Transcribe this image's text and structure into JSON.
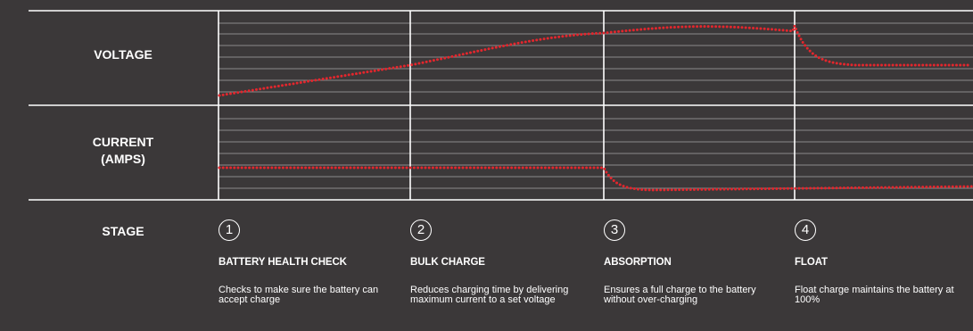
{
  "rows": {
    "voltage": "VOLTAGE",
    "current_line1": "CURRENT",
    "current_line2": "(AMPS)",
    "stage": "STAGE"
  },
  "stages": [
    {
      "number": "1",
      "title": "BATTERY HEALTH CHECK",
      "description": "Checks to make sure the battery can accept charge"
    },
    {
      "number": "2",
      "title": "BULK CHARGE",
      "description": "Reduces charging time by delivering maximum current to a set voltage"
    },
    {
      "number": "3",
      "title": "ABSORPTION",
      "description": "Ensures a full charge to the battery without over-charging"
    },
    {
      "number": "4",
      "title": "FLOAT",
      "description": "Float charge maintains the battery at 100%"
    }
  ],
  "colors": {
    "background": "#3b3839",
    "lines": "#ffffff",
    "curve": "#e3262d"
  }
}
